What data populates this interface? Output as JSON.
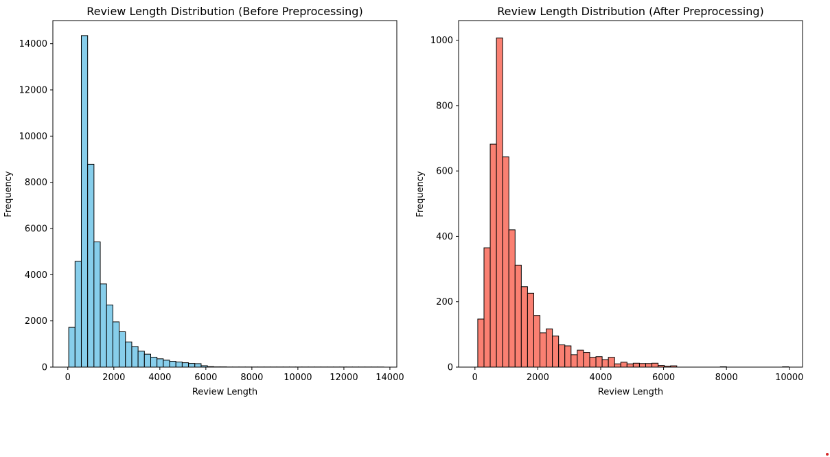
{
  "chart_data": [
    {
      "type": "bar",
      "title": "Review Length Distribution (Before Preprocessing)",
      "xlabel": "Review Length",
      "ylabel": "Frequency",
      "xlim": [
        -650,
        14300
      ],
      "ylim": [
        0,
        15000
      ],
      "xticks": [
        0,
        2000,
        4000,
        6000,
        8000,
        10000,
        12000,
        14000
      ],
      "yticks": [
        0,
        2000,
        4000,
        6000,
        8000,
        10000,
        12000,
        14000
      ],
      "bin_start": 40,
      "bin_width": 274,
      "values": [
        1720,
        4580,
        14350,
        8780,
        5420,
        3600,
        2690,
        1960,
        1530,
        1090,
        890,
        690,
        560,
        430,
        360,
        300,
        250,
        220,
        190,
        160,
        150,
        60,
        20,
        10,
        10,
        5,
        5,
        5,
        5,
        5,
        5,
        5,
        5,
        5,
        5,
        5,
        5,
        5,
        5,
        5,
        5,
        5,
        5,
        5,
        5,
        5,
        5,
        5,
        5,
        5
      ],
      "bar_color": "#87ceeb",
      "edge_color": "#000000",
      "grid": false
    },
    {
      "type": "bar",
      "title": "Review Length Distribution (After Preprocessing)",
      "xlabel": "Review Length",
      "ylabel": "Frequency",
      "xlim": [
        -520,
        10420
      ],
      "ylim": [
        0,
        1060
      ],
      "xticks": [
        0,
        2000,
        4000,
        6000,
        8000,
        10000
      ],
      "yticks": [
        0,
        200,
        400,
        600,
        800,
        1000
      ],
      "bin_start": 90,
      "bin_width": 197.8,
      "values": [
        147,
        365,
        682,
        1007,
        643,
        420,
        312,
        246,
        226,
        158,
        105,
        117,
        95,
        68,
        65,
        38,
        52,
        45,
        30,
        32,
        23,
        30,
        10,
        15,
        10,
        12,
        11,
        11,
        12,
        5,
        3,
        4,
        0,
        0,
        0,
        0,
        0,
        0,
        0,
        1,
        0,
        0,
        0,
        0,
        0,
        0,
        0,
        0,
        0,
        1
      ],
      "bar_color": "#fa8072",
      "edge_color": "#000000",
      "grid": false
    }
  ],
  "marker_color": "#d62728"
}
